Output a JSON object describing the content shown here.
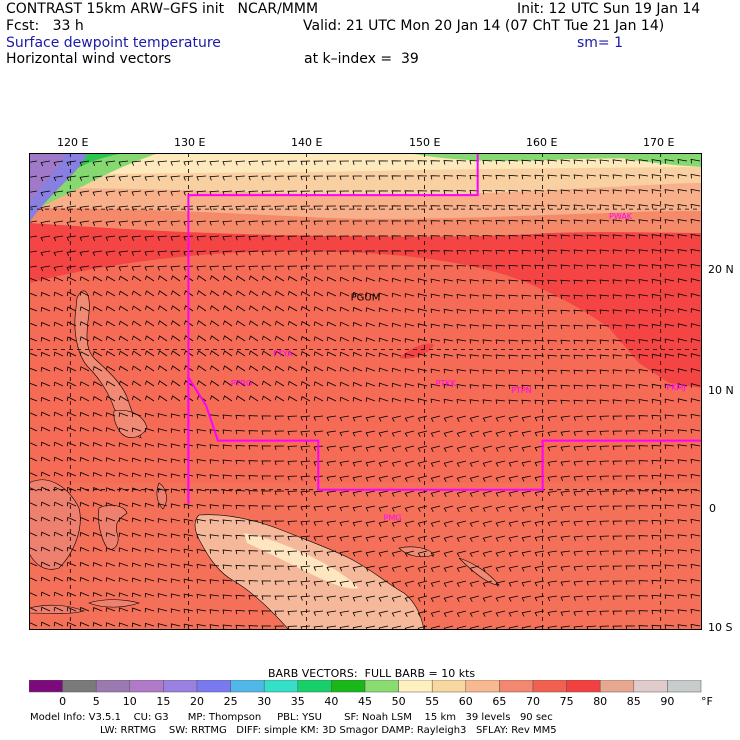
{
  "header": {
    "line1_left": "CONTRAST 15km ARW–GFS init   NCAR/MMM",
    "line1_right": "Init: 12 UTC Sun 19 Jan 14",
    "line2_left": "Fcst:   33 h",
    "line2_right": "Valid: 21 UTC Mon 20 Jan 14 (07 ChT Tue 21 Jan 14)",
    "line3_left": "Surface dewpoint temperature",
    "line3_right": "sm= 1",
    "line4_left": "Horizontal wind vectors",
    "line4_right": "at k–index =  39"
  },
  "map": {
    "lon_labels": [
      "120 E",
      "130 E",
      "140 E",
      "150 E",
      "160 E",
      "170 E"
    ],
    "lon_values": [
      120,
      130,
      140,
      150,
      160,
      170
    ],
    "lat_labels": [
      "20 N",
      "10 N",
      "0",
      "10 S"
    ],
    "lat_values": [
      20,
      10,
      0,
      -10
    ],
    "lon_range": [
      116.5,
      173.5
    ],
    "lat_range": [
      -10,
      24
    ],
    "stations": [
      {
        "id": "PGUM",
        "color": "#000000",
        "lon": 145,
        "lat": 13.5
      },
      {
        "id": "PTYA",
        "color": "#ff00ff",
        "lon": 138,
        "lat": 9.5
      },
      {
        "id": "PTRO",
        "color": "#ff00ff",
        "lon": 134.5,
        "lat": 7.4
      },
      {
        "id": "PTKK",
        "color": "#ff00ff",
        "lon": 151.8,
        "lat": 7.4
      },
      {
        "id": "PTPN",
        "color": "#ff00ff",
        "lon": 158.2,
        "lat": 6.9
      },
      {
        "id": "PKMJ",
        "color": "#ff00ff",
        "lon": 171.3,
        "lat": 7.1
      },
      {
        "id": "PWAK",
        "color": "#ff00ff",
        "lon": 166.6,
        "lat": 19.3
      },
      {
        "id": "PMG",
        "color": "#ff00ff",
        "lon": 147.3,
        "lat": -2.2
      }
    ],
    "grid_on": true,
    "boundary_color": "#ff00ff"
  },
  "barb_title": "BARB VECTORS:  FULL BARB = 10 kts",
  "colorbar": {
    "labels": [
      "0",
      "5",
      "10",
      "15",
      "20",
      "25",
      "30",
      "35",
      "40",
      "45",
      "50",
      "55",
      "60",
      "65",
      "70",
      "75",
      "80",
      "85",
      "90"
    ],
    "unit": "°F",
    "colors": [
      "#7d0a7d",
      "#7a7a7a",
      "#9a7ab0",
      "#b07ac8",
      "#9a80e0",
      "#7a7af0",
      "#50b8e8",
      "#34e0c8",
      "#18d06a",
      "#18b818",
      "#88dc70",
      "#fff0c0",
      "#f8d8a0",
      "#f8b890",
      "#f28870",
      "#f26050",
      "#f24040",
      "#e8a890",
      "#e0cccc",
      "#c8cccc"
    ]
  },
  "footer": {
    "line1": "Model Info: V3.5.1    CU: G3      MP: Thompson     PBL: YSU       SF: Noah LSM    15 km   39 levels   90 sec",
    "line2": "LW: RRTMG    SW: RRTMG   DIFF: simple KM: 3D Smagor DAMP: Rayleigh3   SFLAY: Rev MM5"
  }
}
